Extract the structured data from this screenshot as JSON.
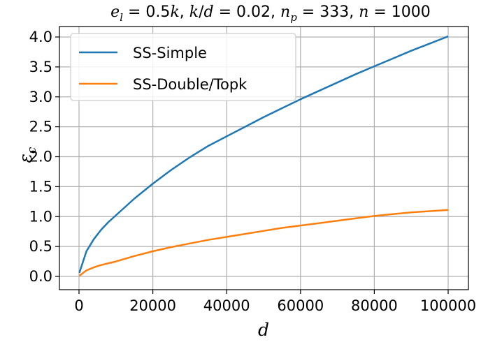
{
  "chart_data": {
    "type": "line",
    "title": "e_l = 0.5k, k/d = 0.02, n_p = 333, n = 1000",
    "xlabel": "d",
    "ylabel": "ε_c",
    "xlim": [
      0,
      100000
    ],
    "ylim": [
      0.0,
      4.0
    ],
    "xticks": [
      0,
      20000,
      40000,
      60000,
      80000,
      100000
    ],
    "yticks": [
      0.0,
      0.5,
      1.0,
      1.5,
      2.0,
      2.5,
      3.0,
      3.5,
      4.0
    ],
    "xtick_labels": [
      "0",
      "20000",
      "40000",
      "60000",
      "80000",
      "100000"
    ],
    "ytick_labels": [
      "0.0",
      "0.5",
      "1.0",
      "1.5",
      "2.0",
      "2.5",
      "3.0",
      "3.5",
      "4.0"
    ],
    "grid": true,
    "legend_position": "upper-left",
    "series": [
      {
        "name": "SS-Simple",
        "color": "#1f77b4",
        "x": [
          100,
          2000,
          4000,
          6000,
          8000,
          10000,
          15000,
          20000,
          25000,
          30000,
          35000,
          40000,
          45000,
          50000,
          55000,
          60000,
          65000,
          70000,
          75000,
          80000,
          85000,
          90000,
          95000,
          100000
        ],
        "y": [
          0.06,
          0.42,
          0.62,
          0.78,
          0.91,
          1.02,
          1.3,
          1.55,
          1.78,
          1.99,
          2.18,
          2.34,
          2.5,
          2.66,
          2.81,
          2.96,
          3.1,
          3.24,
          3.38,
          3.51,
          3.64,
          3.77,
          3.89,
          4.01
        ]
      },
      {
        "name": "SS-Double/Topk",
        "color": "#ff7f0e",
        "x": [
          100,
          2000,
          4000,
          6000,
          8000,
          10000,
          15000,
          20000,
          25000,
          30000,
          35000,
          40000,
          45000,
          50000,
          55000,
          60000,
          65000,
          70000,
          75000,
          80000,
          85000,
          90000,
          95000,
          100000
        ],
        "y": [
          0.01,
          0.1,
          0.15,
          0.19,
          0.22,
          0.25,
          0.34,
          0.42,
          0.49,
          0.55,
          0.61,
          0.66,
          0.71,
          0.76,
          0.81,
          0.85,
          0.89,
          0.93,
          0.97,
          1.01,
          1.04,
          1.07,
          1.09,
          1.11
        ]
      }
    ]
  }
}
